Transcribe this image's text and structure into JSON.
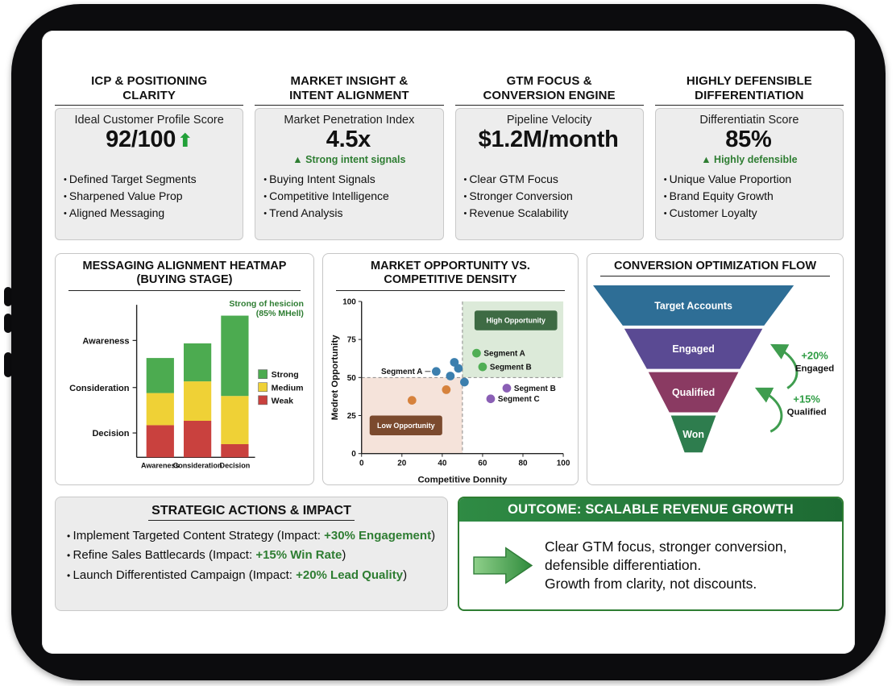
{
  "kpi_cards": [
    {
      "title_line1": "ICP & POSITIONING",
      "title_line2": "CLARITY",
      "subtitle": "Ideal Customer Profile Score",
      "value": "92/100",
      "value_arrow": "⬆",
      "note": "",
      "bullets": [
        "Defined Target Segments",
        "Sharpened Value Prop",
        "Aligned Messaging"
      ]
    },
    {
      "title_line1": "MARKET INSIGHT &",
      "title_line2": "INTENT ALIGNMENT",
      "subtitle": "Market Penetration Index",
      "value": "4.5x",
      "value_arrow": "",
      "note": "▲ Strong intent signals",
      "bullets": [
        "Buying Intent Signals",
        "Competitive Intelligence",
        "Trend Analysis"
      ]
    },
    {
      "title_line1": "GTM FOCUS &",
      "title_line2": "CONVERSION ENGINE",
      "subtitle": "Pipeline Velocity",
      "value": "$1.2M/month",
      "value_arrow": "",
      "note": "",
      "bullets": [
        "Clear GTM Focus",
        "Stronger Conversion",
        "Revenue Scalability"
      ]
    },
    {
      "title_line1": "HIGHLY DEFENSIBLE",
      "title_line2": "DIFFERENTIATION",
      "subtitle": "Differentiatin Score",
      "value": "85%",
      "value_arrow": "",
      "note": "▲ Highly defensible",
      "bullets": [
        "Unique Value Proportion",
        "Brand Equity Growth",
        "Customer Loyalty"
      ]
    }
  ],
  "panel_titles": {
    "heatmap_line1": "MESSAGING ALIGNMENT HEATMAP",
    "heatmap_line2": "(BUYING STAGE)",
    "scatter_line1": "MARKET OPPORTUNITY VS.",
    "scatter_line2": "COMPETITIVE DENSITY",
    "funnel": "CONVERSION OPTIMIZATION FLOW"
  },
  "strategic": {
    "title": "STRATEGIC ACTIONS & IMPACT",
    "items": [
      {
        "prefix": "Implement Targeted Content Strategy (Impact: ",
        "highlight": "+30% Engagement",
        "suffix": ")"
      },
      {
        "prefix": "Refine Sales Battlecards (Impact: ",
        "highlight": "+15% Win Rate",
        "suffix": ")"
      },
      {
        "prefix": "Launch Differentisted Campaign (Impact: ",
        "highlight": "+20% Lead Quality",
        "suffix": ")"
      }
    ]
  },
  "outcome": {
    "title": "OUTCOME: SCALABLE REVENUE GROWTH",
    "line1": "Clear GTM focus, stronger conversion,",
    "line2": "defensible differentiation.",
    "line3": "Growth from clarity, not discounts."
  },
  "colors": {
    "accent_green": "#2e7d32",
    "bar_strong": "#4cab50",
    "bar_medium": "#efd136",
    "bar_weak": "#c9413e",
    "funnel_blue": "#2e6e96",
    "funnel_purple": "#5a4a93",
    "funnel_maroon": "#8a3a62",
    "funnel_green": "#2e7d4e",
    "outcome_header_green": "#2a7d3c"
  },
  "chart_data": [
    {
      "id": "messaging_heatmap",
      "type": "bar",
      "stacked": true,
      "title": "MESSAGING ALIGNMENT HEATMAP (BUYING STAGE)",
      "categories": [
        "Awareness",
        "Consideration",
        "Decision"
      ],
      "series": [
        {
          "name": "Weak",
          "color": "#c9413e",
          "values": [
            22,
            25,
            9
          ]
        },
        {
          "name": "Medium",
          "color": "#efd136",
          "values": [
            22,
            27,
            33
          ]
        },
        {
          "name": "Strong",
          "color": "#4cab50",
          "values": [
            24,
            26,
            55
          ]
        }
      ],
      "stage_axis_labels": [
        "Awareness",
        "Consideration",
        "Decision"
      ],
      "legend_order": [
        "Strong",
        "Medium",
        "Weak"
      ],
      "legend_position": "right",
      "annotation_line1": "Strong of hesicion",
      "annotation_line2": "(85% MHell)",
      "annotation_color": "#2e7d32",
      "ylim": [
        0,
        100
      ],
      "grid": false
    },
    {
      "id": "market_scatter",
      "type": "scatter",
      "title": "MARKET OPPORTUNITY VS. COMPETITIVE DENSITY",
      "xlabel": "Competitive Donnity",
      "ylabel": "Medret Opportunity",
      "xlim": [
        0,
        100
      ],
      "ylim": [
        0,
        100
      ],
      "xticks": [
        0,
        20,
        40,
        60,
        80,
        100
      ],
      "yticks": [
        0,
        25,
        50,
        75,
        100
      ],
      "quadrant_split": {
        "x": 50,
        "y": 50
      },
      "quadrants": {
        "high": {
          "label": "High Opportunity",
          "fill": "#dcead9",
          "badge": "#3e6b44"
        },
        "low": {
          "label": "Low Opportunity",
          "fill": "#f5e3da",
          "badge": "#7b4a2e"
        }
      },
      "points": [
        {
          "x": 37,
          "y": 54,
          "color": "#3c7fae",
          "label": "Segment A",
          "label_side": "left"
        },
        {
          "x": 44,
          "y": 51,
          "color": "#3c7fae"
        },
        {
          "x": 48,
          "y": 56,
          "color": "#3c7fae"
        },
        {
          "x": 51,
          "y": 47,
          "color": "#3c7fae"
        },
        {
          "x": 46,
          "y": 60,
          "color": "#3c7fae"
        },
        {
          "x": 57,
          "y": 66,
          "color": "#4fae54",
          "label": "Segment A",
          "label_side": "right"
        },
        {
          "x": 60,
          "y": 57,
          "color": "#4fae54",
          "label": "Segment B",
          "label_side": "right"
        },
        {
          "x": 72,
          "y": 43,
          "color": "#8a5fb5",
          "label": "Segment B",
          "label_side": "right"
        },
        {
          "x": 64,
          "y": 36,
          "color": "#8a5fb5",
          "label": "Segment C",
          "label_side": "right"
        },
        {
          "x": 25,
          "y": 35,
          "color": "#d6823c"
        },
        {
          "x": 42,
          "y": 42,
          "color": "#d6823c"
        }
      ]
    },
    {
      "id": "conversion_funnel",
      "type": "funnel",
      "title": "CONVERSION OPTIMIZATION FLOW",
      "stages": [
        {
          "label": "Target Accounts",
          "color": "#2e6e96"
        },
        {
          "label": "Engaged",
          "color": "#5a4a93"
        },
        {
          "label": "Qualified",
          "color": "#8a3a62"
        },
        {
          "label": "Won",
          "color": "#2e7d4e"
        }
      ],
      "annotations": [
        {
          "value": "+20%",
          "label": "Engaged"
        },
        {
          "value": "+15%",
          "label": "Qualified"
        }
      ],
      "arrow_color": "#3f9d4f"
    }
  ]
}
